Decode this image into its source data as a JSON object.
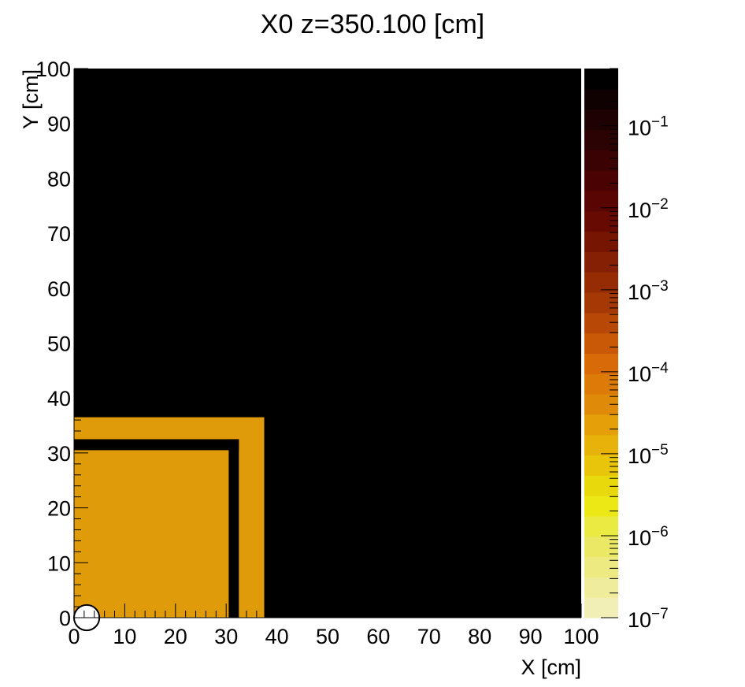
{
  "chart_data": {
    "type": "heatmap",
    "title": "X0 z=350.100 [cm]",
    "xlabel": "X [cm]",
    "ylabel": "Y [cm]",
    "xlim": [
      0,
      100
    ],
    "ylim": [
      0,
      100
    ],
    "x_ticks": [
      "0",
      "10",
      "20",
      "30",
      "40",
      "50",
      "60",
      "70",
      "80",
      "90",
      "100"
    ],
    "y_ticks": [
      "0",
      "10",
      "20",
      "30",
      "40",
      "50",
      "60",
      "70",
      "80",
      "90",
      "100"
    ],
    "background_color": "#000000",
    "regions": [
      {
        "x0": 0,
        "x1": 37.5,
        "y0": 0,
        "y1": 36.5,
        "color": "#e09b0b"
      },
      {
        "x0": 0,
        "x1": 32.5,
        "y0": 30.5,
        "y1": 32.5,
        "color": "#000000"
      },
      {
        "x0": 30.5,
        "x1": 32.5,
        "y0": 0,
        "y1": 32.5,
        "color": "#000000"
      }
    ],
    "marker": {
      "x": 2.5,
      "y": 0,
      "r": 2.5,
      "color": "#ffffff"
    },
    "colorbar": {
      "scale": "log",
      "range": [
        1e-07,
        0.5
      ],
      "ticks": [
        {
          "exponent": -1,
          "value": 0.1
        },
        {
          "exponent": -2,
          "value": 0.01
        },
        {
          "exponent": -3,
          "value": 0.001
        },
        {
          "exponent": -4,
          "value": 0.0001
        },
        {
          "exponent": -5,
          "value": 1e-05
        },
        {
          "exponent": -6,
          "value": 1e-06
        },
        {
          "exponent": -7,
          "value": 1e-07
        }
      ],
      "colors": [
        "#f1efb5",
        "#efec9c",
        "#eeea82",
        "#ebe866",
        "#e9ea42",
        "#ebe816",
        "#e8d90d",
        "#e8c50b",
        "#e7b20a",
        "#e59f09",
        "#e08a09",
        "#dd7b09",
        "#d96a08",
        "#c95807",
        "#b84806",
        "#a53905",
        "#952c04",
        "#862004",
        "#771503",
        "#670b02",
        "#590503",
        "#4a0203",
        "#3b0203",
        "#2c0303",
        "#1e0202",
        "#0f0101",
        "#000000"
      ]
    }
  }
}
